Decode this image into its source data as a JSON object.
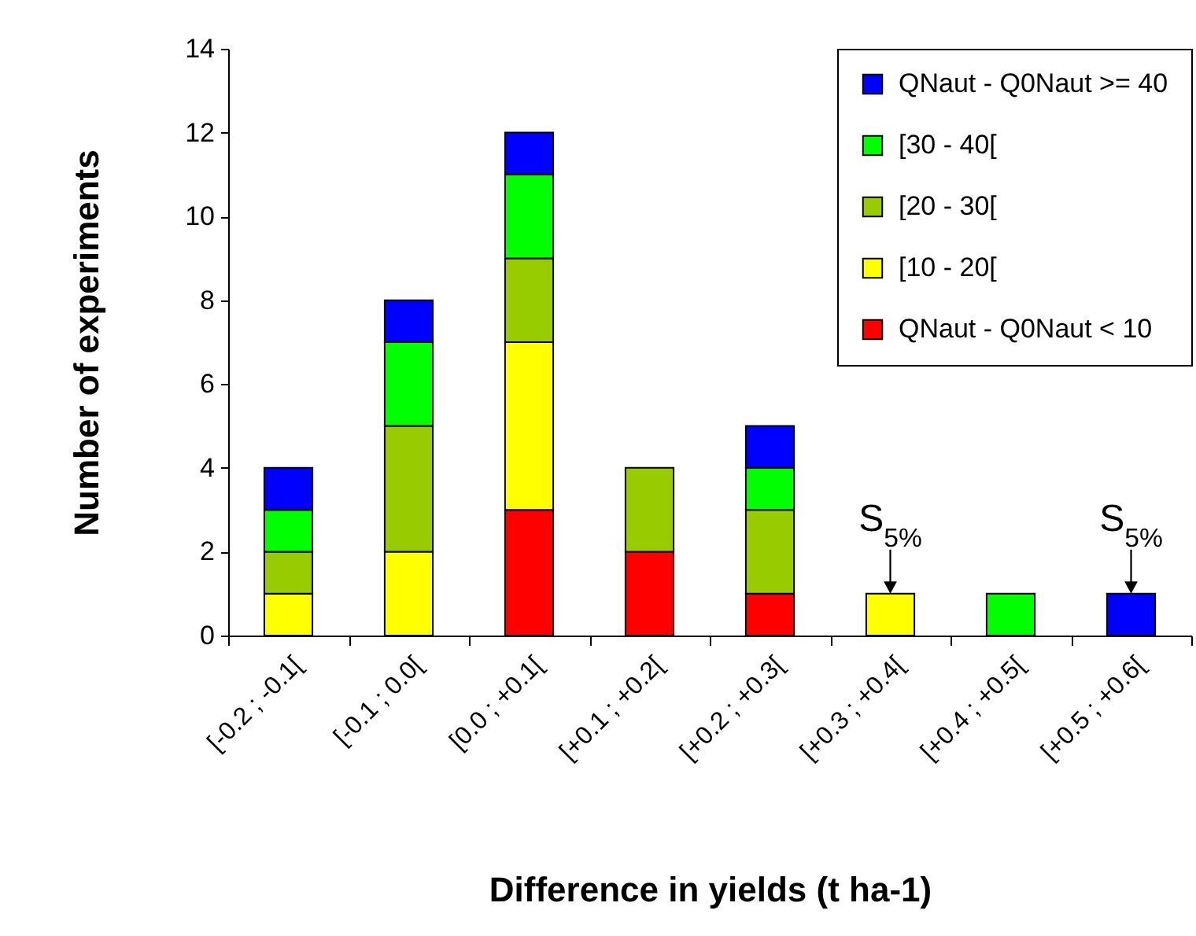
{
  "chart_data": {
    "type": "bar",
    "stacked": true,
    "categories": [
      "[-0.2 ; -0.1[",
      "[-0.1 ; 0.0[",
      "[0.0 ; +0.1[",
      "[+0.1 ; +0.2[",
      "[+0.2 ; +0.3[",
      "[+0.3 ; +0.4[",
      "[+0.4 ; +0.5[",
      "[+0.5 ; +0.6["
    ],
    "xlabel": "Difference in yields (t ha-1)",
    "ylabel": "Number of experiments",
    "ylim": [
      0,
      14
    ],
    "yticks": [
      0,
      2,
      4,
      6,
      8,
      10,
      12,
      14
    ],
    "grid": false,
    "legend": "top right",
    "series": [
      {
        "name": "QNaut - Q0Naut < 10",
        "color": "#ff0000",
        "values": [
          null,
          null,
          3,
          2,
          1,
          null,
          null,
          null
        ]
      },
      {
        "name": "[10 - 20[",
        "color": "#ffff00",
        "values": [
          1,
          2,
          4,
          null,
          null,
          1,
          null,
          null
        ]
      },
      {
        "name": "[20 - 30[",
        "color": "#99cc00",
        "values": [
          1,
          3,
          2,
          2,
          2,
          null,
          null,
          null
        ]
      },
      {
        "name": "[30 - 40[",
        "color": "#00ff00",
        "values": [
          1,
          2,
          2,
          null,
          1,
          null,
          1,
          null
        ]
      },
      {
        "name": "QNaut - Q0Naut >= 40",
        "color": "#0000ff",
        "values": [
          1,
          1,
          1,
          null,
          1,
          null,
          null,
          1
        ]
      }
    ],
    "annotations": [
      {
        "text": "S$_{5%}$",
        "x": "[+0.3 ; +0.4[",
        "y": 1
      },
      {
        "text": "S$_{5%}$",
        "x": "[+0.5 ; +0.6[",
        "y": 1
      }
    ]
  }
}
